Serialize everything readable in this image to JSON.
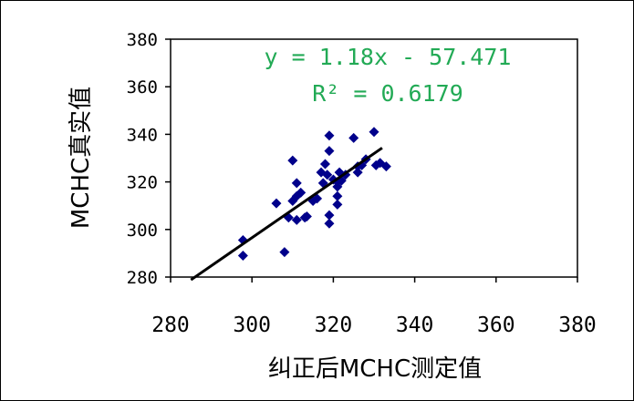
{
  "chart_data": {
    "type": "scatter",
    "xlabel": "纠正后MCHC测定值",
    "ylabel": "MCHC真实值",
    "xlim": [
      280,
      380
    ],
    "ylim": [
      280,
      380
    ],
    "x_ticks": [
      280,
      300,
      320,
      340,
      360,
      380
    ],
    "y_ticks": [
      280,
      300,
      320,
      340,
      360,
      380
    ],
    "grid": false,
    "legend": "none",
    "marker_color": "#00008B",
    "trendline_color": "#000000",
    "equation_color": "#22AA55",
    "trendline": {
      "slope": 1.18,
      "intercept": -57.471,
      "x_range": [
        285,
        332
      ],
      "equation_label": "y = 1.18x - 57.471",
      "r2_label": "R² = 0.6179"
    },
    "points": [
      [
        297.8,
        295.5
      ],
      [
        297.8,
        289
      ],
      [
        306,
        311
      ],
      [
        308,
        290.5
      ],
      [
        309,
        305
      ],
      [
        310,
        312
      ],
      [
        310,
        329
      ],
      [
        311,
        314
      ],
      [
        311,
        304
      ],
      [
        311,
        319.5
      ],
      [
        312,
        315.5
      ],
      [
        313,
        305
      ],
      [
        313.5,
        305.5
      ],
      [
        315,
        312
      ],
      [
        316,
        313
      ],
      [
        317,
        324
      ],
      [
        317.5,
        319.5
      ],
      [
        318,
        327.5
      ],
      [
        318.5,
        323
      ],
      [
        319,
        339.5
      ],
      [
        319,
        333
      ],
      [
        319,
        306
      ],
      [
        319,
        302.5
      ],
      [
        320,
        321
      ],
      [
        321,
        320
      ],
      [
        321,
        318
      ],
      [
        321,
        314
      ],
      [
        321,
        310.5
      ],
      [
        321.5,
        324
      ],
      [
        322,
        320.5
      ],
      [
        323,
        323
      ],
      [
        325,
        338.5
      ],
      [
        326,
        326.5
      ],
      [
        326,
        324
      ],
      [
        327,
        327
      ],
      [
        328,
        329.5
      ],
      [
        330,
        341
      ],
      [
        330.5,
        327
      ],
      [
        331.5,
        328
      ],
      [
        333,
        326.5
      ]
    ]
  }
}
